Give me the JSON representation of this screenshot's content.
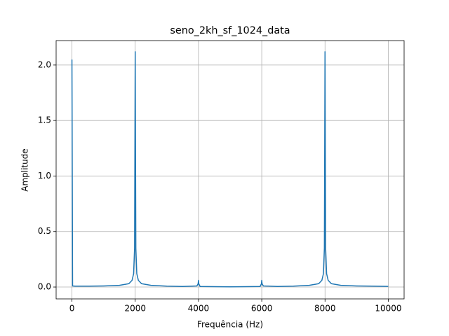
{
  "chart_data": {
    "type": "line",
    "title": "seno_2kh_sf_1024_data",
    "x_label": "Frequência (Hz)",
    "y_label": "Amplitude",
    "x": [
      0,
      20,
      100,
      500,
      1000,
      1500,
      1800,
      1900,
      1950,
      1980,
      2000,
      2020,
      2050,
      2100,
      2200,
      2500,
      3000,
      3500,
      3950,
      3990,
      4000,
      4010,
      4050,
      4500,
      5000,
      5500,
      5950,
      5990,
      6000,
      6010,
      6050,
      6500,
      7000,
      7500,
      7800,
      7900,
      7950,
      7980,
      8000,
      8020,
      8050,
      8100,
      8200,
      8500,
      9000,
      9500,
      10000
    ],
    "series": [
      {
        "color": "#1f77b4",
        "values": [
          2.05,
          0.01,
          0.008,
          0.008,
          0.01,
          0.015,
          0.03,
          0.06,
          0.12,
          0.35,
          2.12,
          0.35,
          0.12,
          0.06,
          0.03,
          0.015,
          0.008,
          0.005,
          0.01,
          0.03,
          0.06,
          0.03,
          0.005,
          0.003,
          0.002,
          0.003,
          0.005,
          0.03,
          0.06,
          0.03,
          0.01,
          0.005,
          0.008,
          0.015,
          0.03,
          0.06,
          0.12,
          0.35,
          2.12,
          0.35,
          0.12,
          0.06,
          0.03,
          0.015,
          0.01,
          0.008,
          0.006
        ]
      }
    ],
    "xlim": [
      -500,
      10500
    ],
    "ylim": [
      -0.107,
      2.22
    ],
    "xticks": [
      0,
      2000,
      4000,
      6000,
      8000,
      10000
    ],
    "yticks": [
      {
        "value": 0,
        "label": "0.0"
      },
      0.5,
      {
        "value": 1,
        "label": "1.0"
      },
      1.5,
      {
        "value": 2,
        "label": "2.0"
      }
    ],
    "grid": true
  }
}
